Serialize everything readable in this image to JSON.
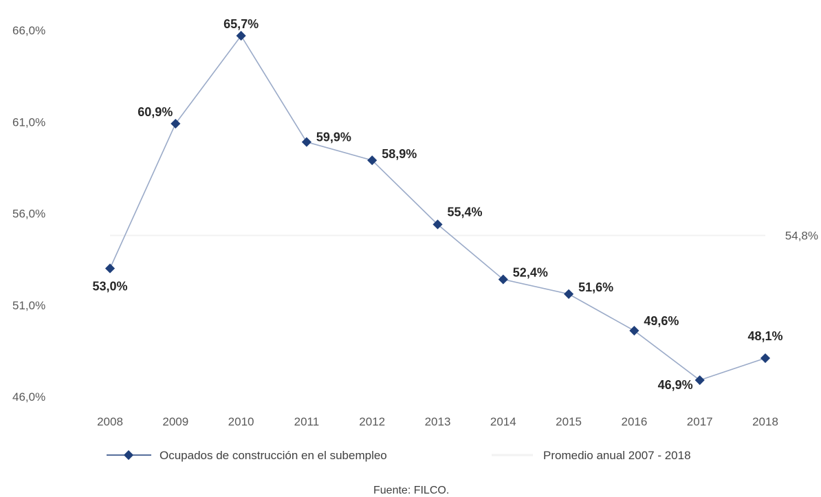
{
  "chart_data": {
    "type": "line",
    "categories": [
      "2008",
      "2009",
      "2010",
      "2011",
      "2012",
      "2013",
      "2014",
      "2015",
      "2016",
      "2017",
      "2018"
    ],
    "series": [
      {
        "name": "Ocupados de construcción en el subempleo",
        "values": [
          53.0,
          60.9,
          65.7,
          59.9,
          58.9,
          55.4,
          52.4,
          51.6,
          49.6,
          46.9,
          48.1
        ],
        "labels": [
          "53,0%",
          "60,9%",
          "65,7%",
          "59,9%",
          "58,9%",
          "55,4%",
          "52,4%",
          "51,6%",
          "49,6%",
          "46,9%",
          "48,1%"
        ],
        "color": "#1f3f7a"
      },
      {
        "name": "Promedio anual 2007 - 2018",
        "value": 54.8,
        "label": "54,8%",
        "color": "#f2f2f2"
      }
    ],
    "ylim": [
      46.0,
      66.0
    ],
    "yticks": [
      46.0,
      51.0,
      56.0,
      61.0,
      66.0
    ],
    "ytick_labels": [
      "46,0%",
      "51,0%",
      "56,0%",
      "61,0%",
      "66,0%"
    ],
    "grid": false,
    "legend_position": "bottom"
  },
  "source": "Fuente: FILCO."
}
